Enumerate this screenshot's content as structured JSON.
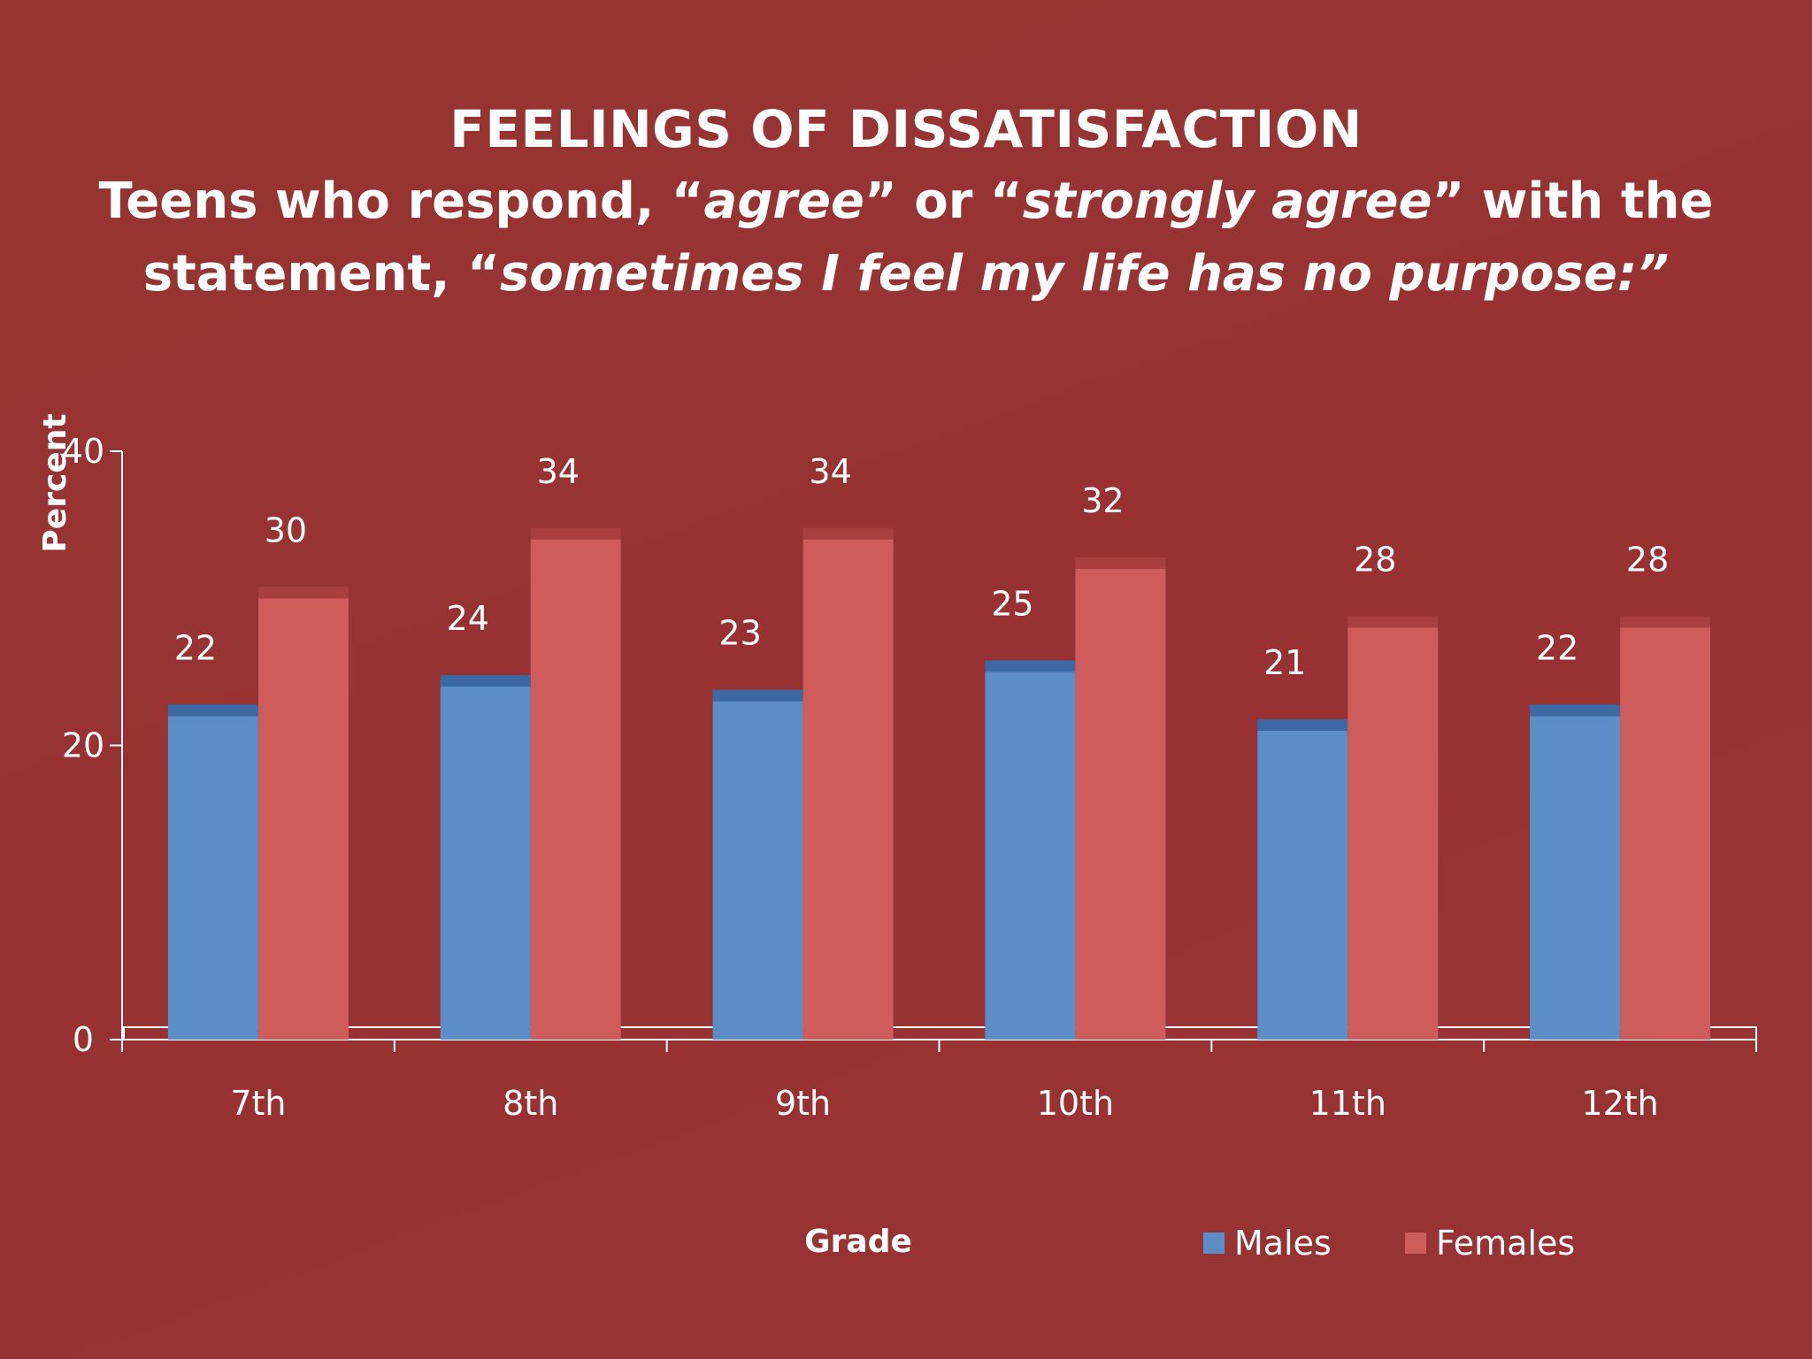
{
  "slide": {
    "title": "FEELINGS OF DISSATISFACTION",
    "subtitle_parts": [
      {
        "text": "Teens who respond, “",
        "italic": false
      },
      {
        "text": "agree",
        "italic": true
      },
      {
        "text": "” or “",
        "italic": false
      },
      {
        "text": "strongly agree",
        "italic": true
      },
      {
        "text": "” with the statement, “",
        "italic": false
      },
      {
        "text": "sometimes I feel my life has no purpose:”",
        "italic": true
      }
    ]
  },
  "chart_data": {
    "type": "bar",
    "categories": [
      "7th",
      "8th",
      "9th",
      "10th",
      "11th",
      "12th"
    ],
    "series": [
      {
        "name": "Males",
        "values": [
          22,
          24,
          23,
          25,
          21,
          22
        ],
        "color": "#5b8ec6",
        "top_color": "#3c68a3"
      },
      {
        "name": "Females",
        "values": [
          30,
          34,
          34,
          32,
          28,
          28
        ],
        "color": "#cd5c5b",
        "top_color": "#a8403f"
      }
    ],
    "xlabel": "Grade",
    "ylabel": "Percent",
    "ylim": [
      0,
      40
    ],
    "yticks": [
      0,
      20,
      40
    ],
    "ytick_labels": [
      "0",
      "20",
      "40"
    ],
    "grid": false,
    "legend": "bottom-right",
    "data_labels": true
  }
}
